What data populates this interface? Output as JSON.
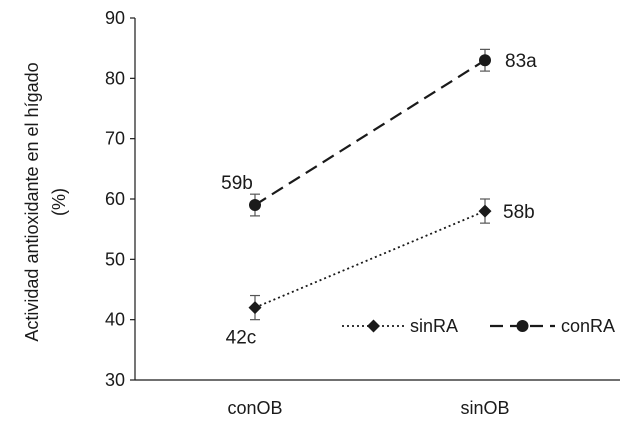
{
  "chart_data": {
    "type": "line",
    "categories": [
      "conOB",
      "sinOB"
    ],
    "ylabel_line1": "Actividad antioxidante en el hígado",
    "ylabel_line2": "(%)",
    "ylim": [
      30,
      90
    ],
    "yticks": [
      30,
      40,
      50,
      60,
      70,
      80,
      90
    ],
    "grid": false,
    "legend_position": "bottom-right",
    "series": [
      {
        "name": "sinRA",
        "values": [
          42,
          58
        ],
        "errors": [
          2,
          2
        ],
        "labels": [
          "42c",
          "58b"
        ],
        "line_style": "dotted",
        "marker": "diamond",
        "color": "#1a1a1a"
      },
      {
        "name": "conRA",
        "values": [
          59,
          83
        ],
        "errors": [
          1.8,
          1.8
        ],
        "labels": [
          "59b",
          "83a"
        ],
        "line_style": "dashed",
        "marker": "circle",
        "color": "#1a1a1a"
      }
    ]
  }
}
